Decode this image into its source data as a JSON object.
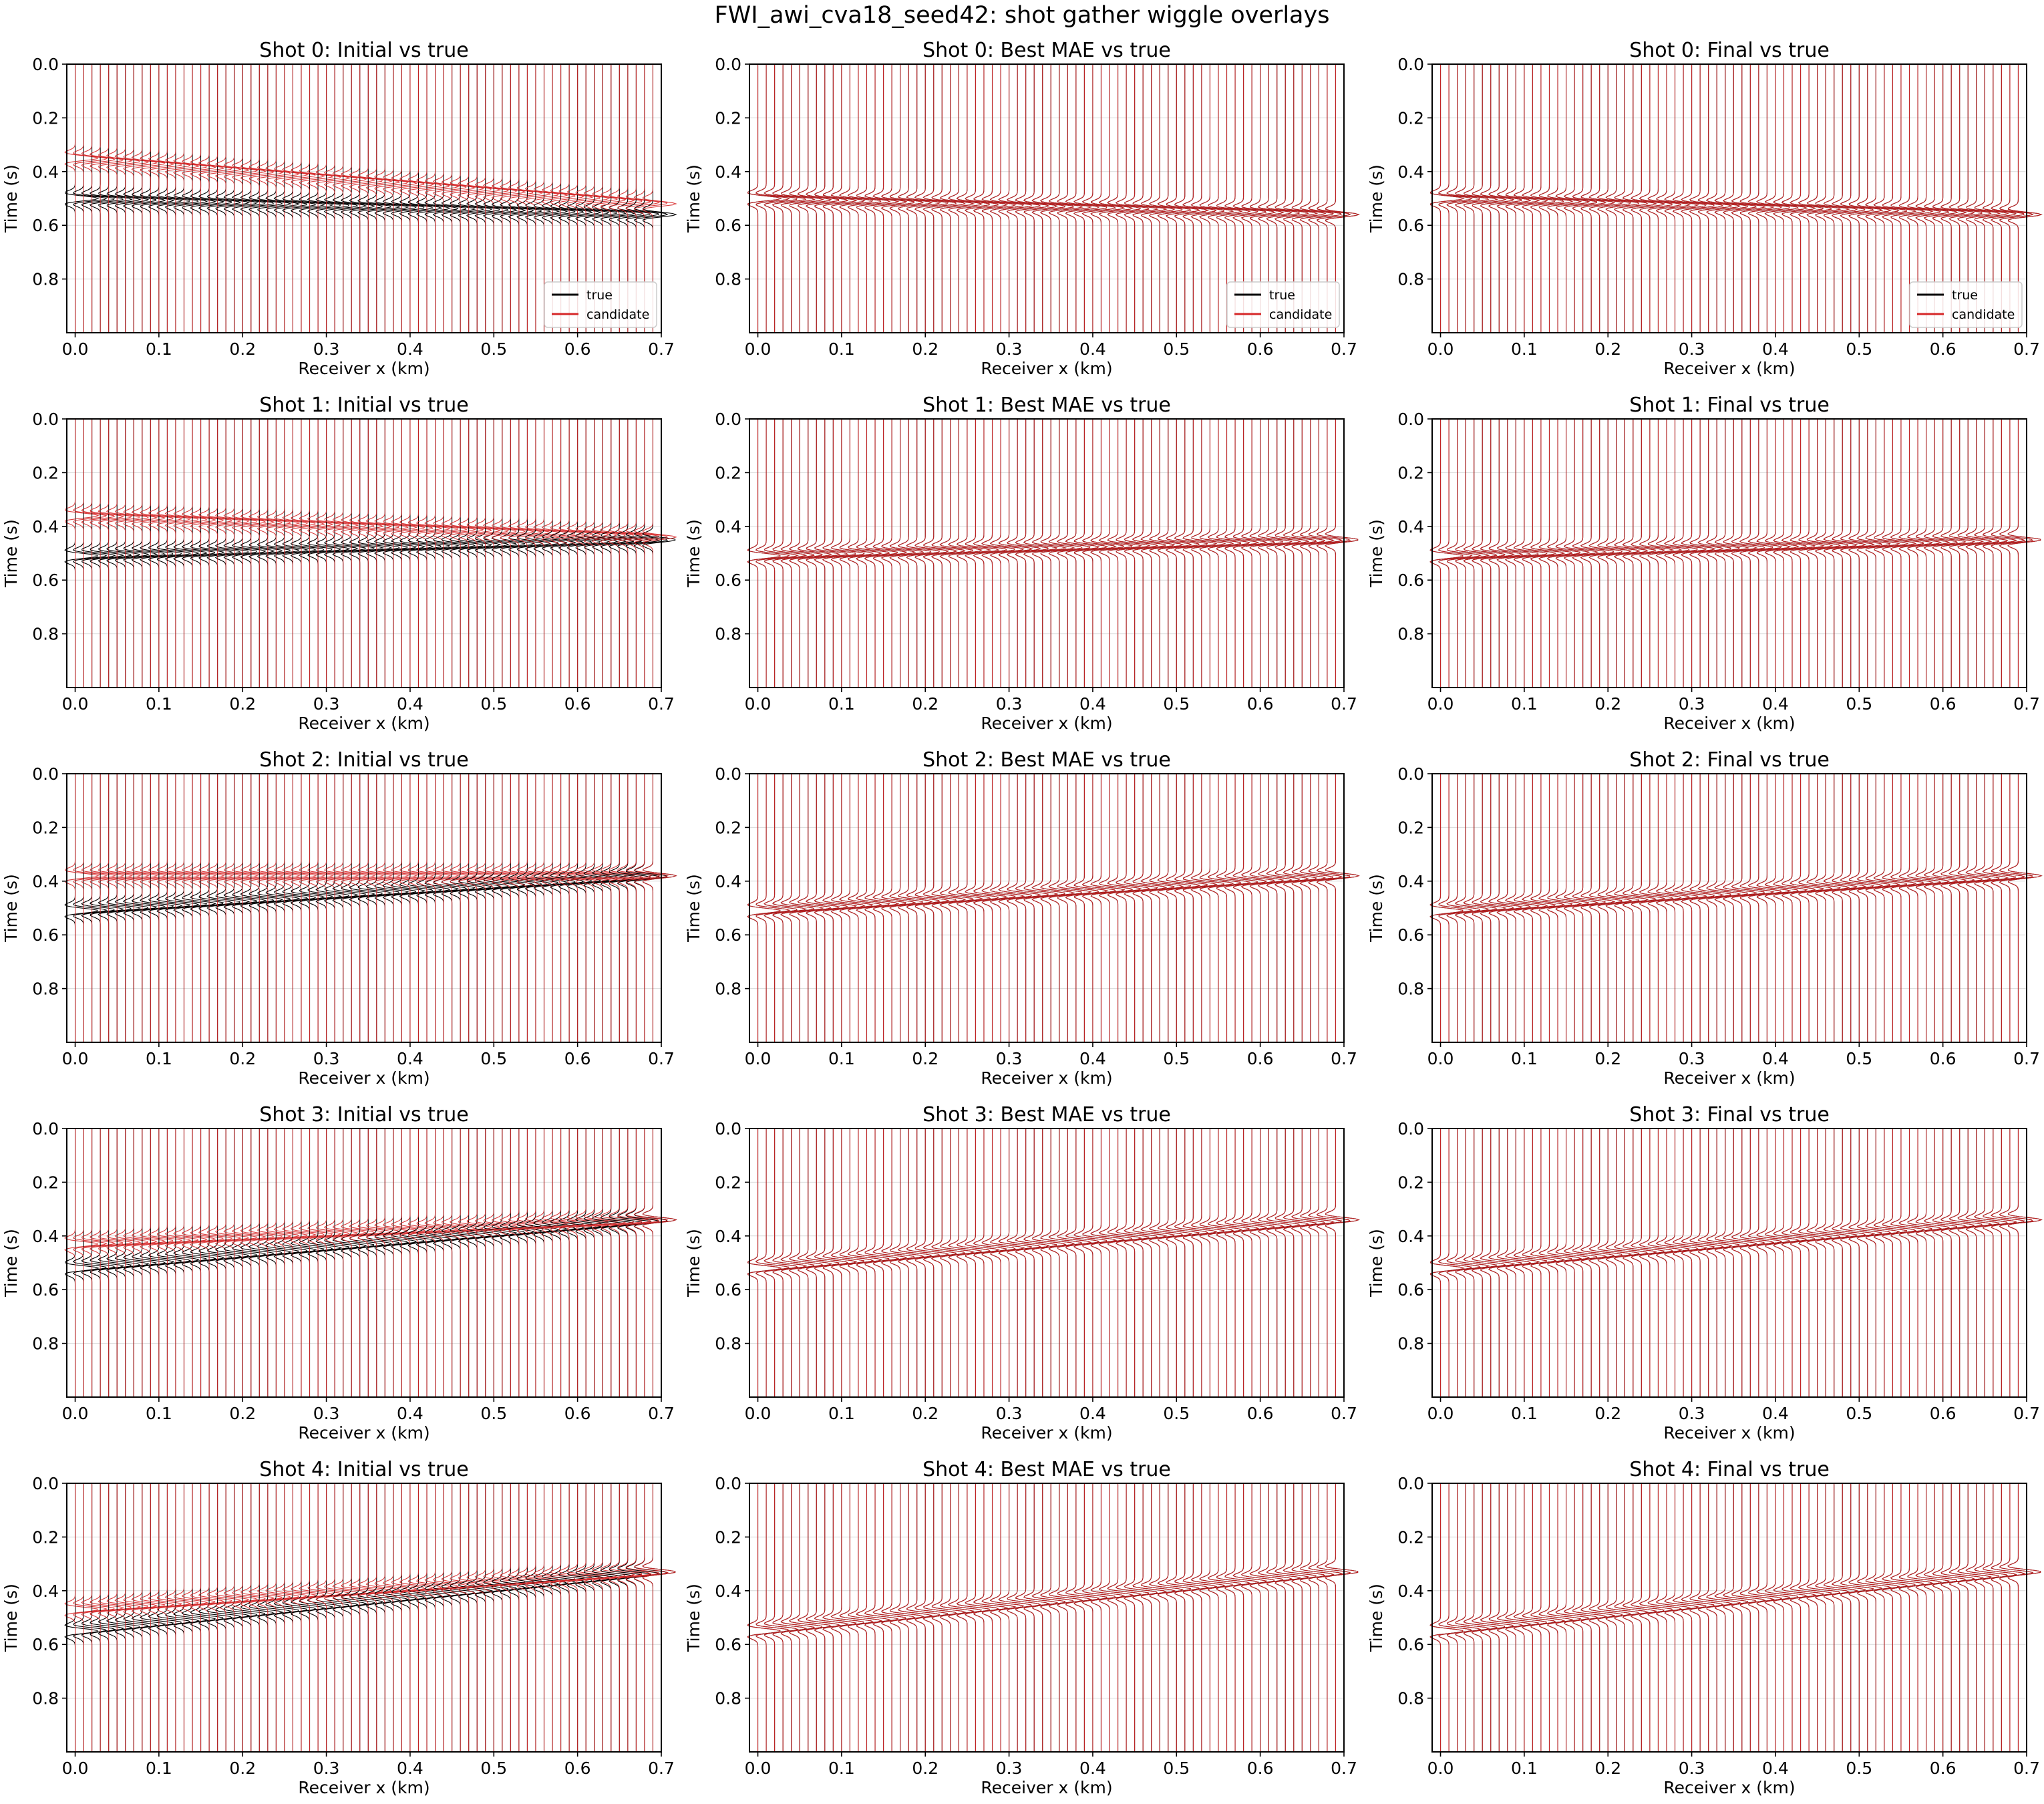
{
  "chart_data": {
    "suptitle": "FWI_awi_cva18_seed42: shot gather wiggle overlays",
    "type": "wiggle",
    "columns": [
      "Initial",
      "Best MAE",
      "Final"
    ],
    "receivers": {
      "x_start_km": 0.0,
      "x_end_km": 0.69,
      "count": 70
    },
    "xlim": [
      -0.01,
      0.7
    ],
    "ylim": [
      1.0,
      0.0
    ],
    "xticks": [
      "0.0",
      "0.1",
      "0.2",
      "0.3",
      "0.4",
      "0.5",
      "0.6",
      "0.7"
    ],
    "yticks": [
      "0.0",
      "0.2",
      "0.4",
      "0.6",
      "0.8"
    ],
    "xlabel": "Receiver x (km)",
    "ylabel": "Time (s)",
    "grid": "horizontal, light",
    "legend": {
      "placement": "lower-right",
      "rows": [
        "top"
      ],
      "entries": [
        "true",
        "candidate"
      ]
    },
    "series_colors": {
      "true": "#000000",
      "candidate": "#d62728"
    },
    "series": [
      {
        "name": "true"
      },
      {
        "name": "candidate"
      }
    ],
    "panels": [
      {
        "title": "Shot 0: Initial vs true",
        "true_arrival_s": [
          0.5,
          0.56
        ],
        "candidate_arrival_s": [
          0.35,
          0.52
        ]
      },
      {
        "title": "Shot 0: Best MAE vs true",
        "true_arrival_s": [
          0.5,
          0.56
        ],
        "candidate_arrival_s": [
          0.5,
          0.56
        ]
      },
      {
        "title": "Shot 0: Final vs true",
        "true_arrival_s": [
          0.5,
          0.56
        ],
        "candidate_arrival_s": [
          0.5,
          0.56
        ]
      },
      {
        "title": "Shot 1: Initial vs true",
        "true_arrival_s": [
          0.51,
          0.45
        ],
        "candidate_arrival_s": [
          0.36,
          0.44
        ]
      },
      {
        "title": "Shot 1: Best MAE vs true",
        "true_arrival_s": [
          0.51,
          0.45
        ],
        "candidate_arrival_s": [
          0.51,
          0.45
        ]
      },
      {
        "title": "Shot 1: Final vs true",
        "true_arrival_s": [
          0.51,
          0.45
        ],
        "candidate_arrival_s": [
          0.51,
          0.45
        ]
      },
      {
        "title": "Shot 2: Initial vs true",
        "true_arrival_s": [
          0.51,
          0.38
        ],
        "candidate_arrival_s": [
          0.38,
          0.38
        ]
      },
      {
        "title": "Shot 2: Best MAE vs true",
        "true_arrival_s": [
          0.51,
          0.38
        ],
        "candidate_arrival_s": [
          0.51,
          0.38
        ]
      },
      {
        "title": "Shot 2: Final vs true",
        "true_arrival_s": [
          0.51,
          0.38
        ],
        "candidate_arrival_s": [
          0.51,
          0.38
        ]
      },
      {
        "title": "Shot 3: Initial vs true",
        "true_arrival_s": [
          0.52,
          0.34
        ],
        "candidate_arrival_s": [
          0.43,
          0.34
        ]
      },
      {
        "title": "Shot 3: Best MAE vs true",
        "true_arrival_s": [
          0.52,
          0.34
        ],
        "candidate_arrival_s": [
          0.52,
          0.34
        ]
      },
      {
        "title": "Shot 3: Final vs true",
        "true_arrival_s": [
          0.52,
          0.34
        ],
        "candidate_arrival_s": [
          0.52,
          0.34
        ]
      },
      {
        "title": "Shot 4: Initial vs true",
        "true_arrival_s": [
          0.55,
          0.33
        ],
        "candidate_arrival_s": [
          0.47,
          0.33
        ]
      },
      {
        "title": "Shot 4: Best MAE vs true",
        "true_arrival_s": [
          0.55,
          0.33
        ],
        "candidate_arrival_s": [
          0.55,
          0.33
        ]
      },
      {
        "title": "Shot 4: Final vs true",
        "true_arrival_s": [
          0.55,
          0.33
        ],
        "candidate_arrival_s": [
          0.55,
          0.33
        ]
      }
    ]
  }
}
